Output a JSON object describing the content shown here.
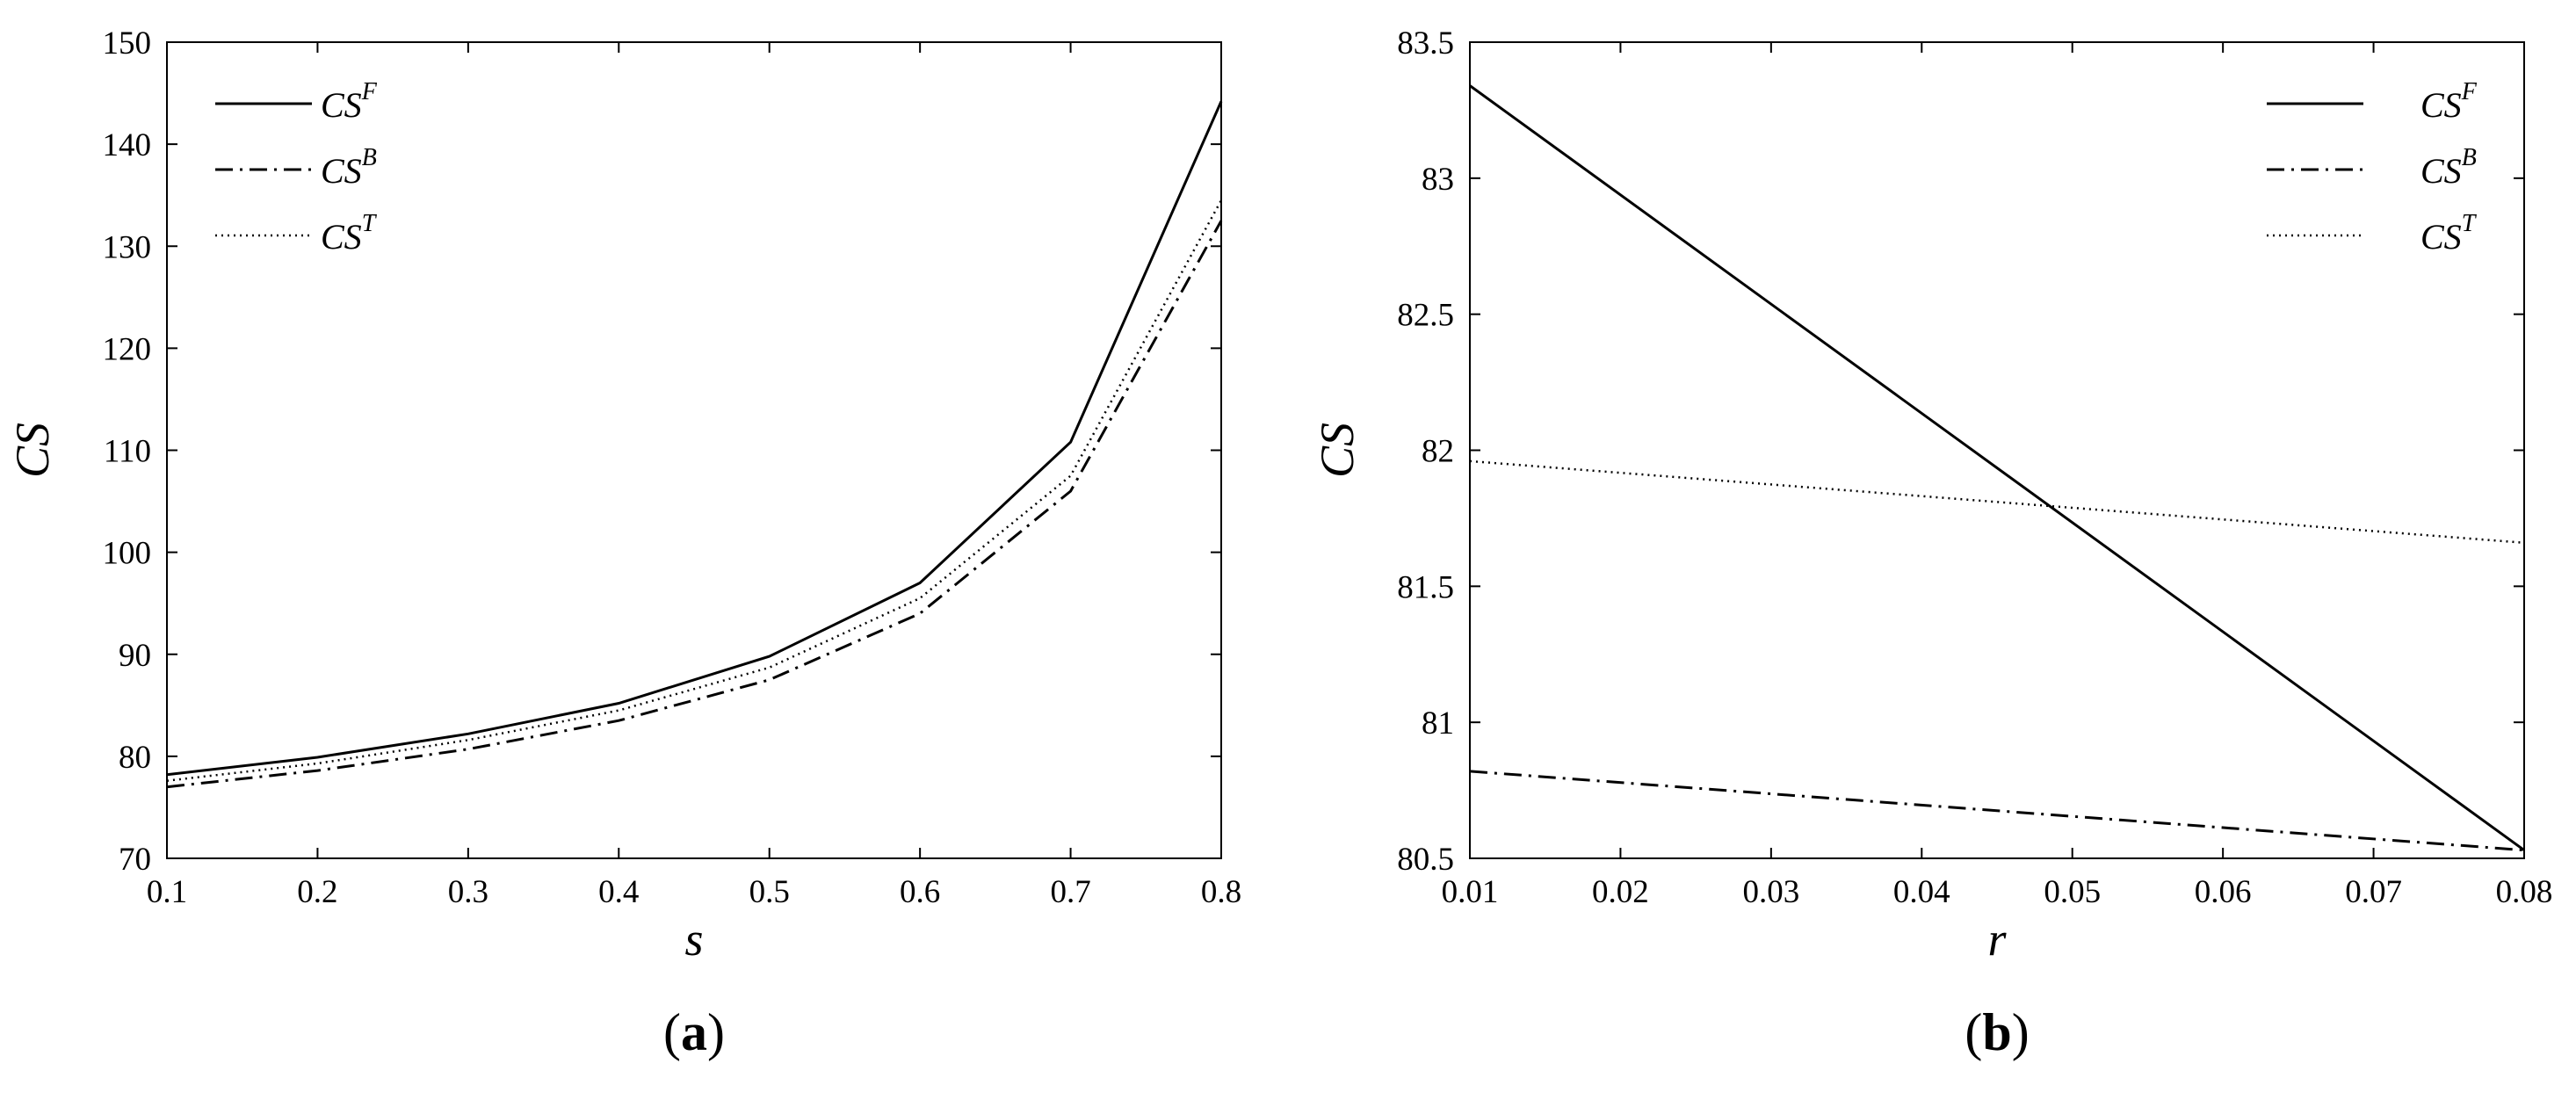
{
  "chart_data": [
    {
      "type": "line",
      "panel_label_open": "(",
      "panel_label_letter": "a",
      "panel_label_close": ")",
      "xlabel": "s",
      "ylabel": "CS",
      "xlim": [
        0.1,
        0.8
      ],
      "ylim": [
        70,
        150
      ],
      "xticks": [
        0.1,
        0.2,
        0.3,
        0.4,
        0.5,
        0.6,
        0.7,
        0.8
      ],
      "yticks": [
        70,
        80,
        90,
        100,
        110,
        120,
        130,
        140,
        150
      ],
      "x_tick_labels": [
        "0.1",
        "0.2",
        "0.3",
        "0.4",
        "0.5",
        "0.6",
        "0.7",
        "0.8"
      ],
      "y_tick_labels": [
        "70",
        "80",
        "90",
        "100",
        "110",
        "120",
        "130",
        "140",
        "150"
      ],
      "legend_position": "top-left",
      "grid": false,
      "series": [
        {
          "name": "CS^F",
          "base": "CS",
          "sup": "F",
          "style": "solid",
          "x": [
            0.1,
            0.2,
            0.3,
            0.4,
            0.5,
            0.6,
            0.7,
            0.8
          ],
          "y": [
            78.2,
            79.9,
            82.2,
            85.2,
            89.8,
            97.0,
            110.8,
            144.2
          ]
        },
        {
          "name": "CS^B",
          "base": "CS",
          "sup": "B",
          "style": "dashdot",
          "x": [
            0.1,
            0.2,
            0.3,
            0.4,
            0.5,
            0.6,
            0.7,
            0.8
          ],
          "y": [
            77.0,
            78.6,
            80.7,
            83.5,
            87.5,
            94.0,
            106.0,
            132.5
          ]
        },
        {
          "name": "CS^T",
          "base": "CS",
          "sup": "T",
          "style": "dotted",
          "x": [
            0.1,
            0.2,
            0.3,
            0.4,
            0.5,
            0.6,
            0.7,
            0.8
          ],
          "y": [
            77.6,
            79.3,
            81.6,
            84.5,
            88.7,
            95.5,
            107.5,
            134.5
          ]
        }
      ]
    },
    {
      "type": "line",
      "panel_label_open": "(",
      "panel_label_letter": "b",
      "panel_label_close": ")",
      "xlabel": "r",
      "ylabel": "CS",
      "xlim": [
        0.01,
        0.08
      ],
      "ylim": [
        80.5,
        83.5
      ],
      "xticks": [
        0.01,
        0.02,
        0.03,
        0.04,
        0.05,
        0.06,
        0.07,
        0.08
      ],
      "yticks": [
        80.5,
        81,
        81.5,
        82,
        82.5,
        83,
        83.5
      ],
      "x_tick_labels": [
        "0.01",
        "0.02",
        "0.03",
        "0.04",
        "0.05",
        "0.06",
        "0.07",
        "0.08"
      ],
      "y_tick_labels": [
        "80.5",
        "81",
        "81.5",
        "82",
        "82.5",
        "83",
        "83.5"
      ],
      "legend_position": "top-right",
      "grid": false,
      "series": [
        {
          "name": "CS^F",
          "base": "CS",
          "sup": "F",
          "style": "solid",
          "x": [
            0.01,
            0.08
          ],
          "y": [
            83.34,
            80.53
          ]
        },
        {
          "name": "CS^B",
          "base": "CS",
          "sup": "B",
          "style": "dashdot",
          "x": [
            0.01,
            0.08
          ],
          "y": [
            80.82,
            80.53
          ]
        },
        {
          "name": "CS^T",
          "base": "CS",
          "sup": "T",
          "style": "dotted",
          "x": [
            0.01,
            0.08
          ],
          "y": [
            81.96,
            81.66
          ]
        }
      ]
    }
  ]
}
